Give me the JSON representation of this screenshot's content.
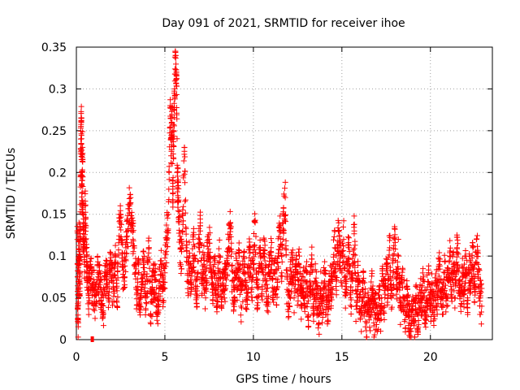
{
  "chart_data": {
    "type": "scatter",
    "title": "Day 091 of 2021, SRMTID for receiver ihoe",
    "xlabel": "GPS time / hours",
    "ylabel": "SRMTID / TECUs",
    "xlim": [
      0,
      23.5
    ],
    "ylim": [
      0,
      0.35
    ],
    "xticks": [
      0,
      5,
      10,
      15,
      20
    ],
    "xtick_labels": [
      "0",
      "5",
      "10",
      "15",
      "20"
    ],
    "yticks": [
      0,
      0.05,
      0.1,
      0.15,
      0.2,
      0.25,
      0.3,
      0.35
    ],
    "ytick_labels": [
      "0",
      "0.05",
      "0.1",
      "0.15",
      "0.2",
      "0.25",
      "0.3",
      "0.35"
    ],
    "grid": true,
    "marker": "plus",
    "color": "#ff0000",
    "x_range_of_data": [
      0.0,
      22.9
    ],
    "series": [
      {
        "name": "SRMTID",
        "points": [
          [
            0.05,
            0.13
          ],
          [
            0.08,
            0.04
          ],
          [
            0.1,
            0.02
          ],
          [
            0.12,
            0.09
          ],
          [
            0.15,
            0.14
          ],
          [
            0.18,
            0.07
          ],
          [
            0.2,
            0.08
          ],
          [
            0.22,
            0.12
          ],
          [
            0.25,
            0.24
          ],
          [
            0.28,
            0.26
          ],
          [
            0.3,
            0.2
          ],
          [
            0.32,
            0.16
          ],
          [
            0.35,
            0.23
          ],
          [
            0.38,
            0.11
          ],
          [
            0.4,
            0.15
          ],
          [
            0.45,
            0.09
          ],
          [
            0.5,
            0.16
          ],
          [
            0.55,
            0.11
          ],
          [
            0.6,
            0.08
          ],
          [
            0.65,
            0.07
          ],
          [
            0.7,
            0.05
          ],
          [
            0.8,
            0.09
          ],
          [
            0.9,
            0.06
          ],
          [
            1.0,
            0.06
          ],
          [
            1.1,
            0.04
          ],
          [
            1.2,
            0.08
          ],
          [
            1.3,
            0.07
          ],
          [
            1.4,
            0.05
          ],
          [
            1.5,
            0.03
          ],
          [
            1.6,
            0.06
          ],
          [
            1.7,
            0.08
          ],
          [
            1.8,
            0.05
          ],
          [
            1.9,
            0.09
          ],
          [
            2.0,
            0.07
          ],
          [
            2.1,
            0.06
          ],
          [
            2.2,
            0.1
          ],
          [
            2.3,
            0.04
          ],
          [
            2.4,
            0.12
          ],
          [
            2.5,
            0.15
          ],
          [
            2.6,
            0.09
          ],
          [
            2.7,
            0.07
          ],
          [
            2.8,
            0.11
          ],
          [
            2.9,
            0.13
          ],
          [
            3.0,
            0.16
          ],
          [
            3.1,
            0.14
          ],
          [
            3.2,
            0.12
          ],
          [
            3.3,
            0.09
          ],
          [
            3.4,
            0.06
          ],
          [
            3.5,
            0.08
          ],
          [
            3.6,
            0.04
          ],
          [
            3.7,
            0.06
          ],
          [
            3.8,
            0.09
          ],
          [
            3.9,
            0.05
          ],
          [
            4.0,
            0.07
          ],
          [
            4.1,
            0.11
          ],
          [
            4.2,
            0.03
          ],
          [
            4.3,
            0.06
          ],
          [
            4.4,
            0.08
          ],
          [
            4.5,
            0.05
          ],
          [
            4.6,
            0.04
          ],
          [
            4.7,
            0.07
          ],
          [
            4.8,
            0.09
          ],
          [
            4.9,
            0.06
          ],
          [
            5.0,
            0.08
          ],
          [
            5.1,
            0.12
          ],
          [
            5.2,
            0.15
          ],
          [
            5.3,
            0.28
          ],
          [
            5.35,
            0.22
          ],
          [
            5.4,
            0.26
          ],
          [
            5.45,
            0.18
          ],
          [
            5.5,
            0.25
          ],
          [
            5.55,
            0.3
          ],
          [
            5.6,
            0.34
          ],
          [
            5.65,
            0.32
          ],
          [
            5.7,
            0.2
          ],
          [
            5.75,
            0.17
          ],
          [
            5.8,
            0.14
          ],
          [
            5.9,
            0.09
          ],
          [
            6.0,
            0.13
          ],
          [
            6.1,
            0.23
          ],
          [
            6.2,
            0.11
          ],
          [
            6.3,
            0.07
          ],
          [
            6.4,
            0.1
          ],
          [
            6.5,
            0.06
          ],
          [
            6.6,
            0.12
          ],
          [
            6.7,
            0.08
          ],
          [
            6.8,
            0.05
          ],
          [
            6.9,
            0.11
          ],
          [
            7.0,
            0.13
          ],
          [
            7.1,
            0.07
          ],
          [
            7.2,
            0.09
          ],
          [
            7.3,
            0.05
          ],
          [
            7.4,
            0.1
          ],
          [
            7.5,
            0.12
          ],
          [
            7.6,
            0.08
          ],
          [
            7.7,
            0.06
          ],
          [
            7.8,
            0.09
          ],
          [
            7.9,
            0.05
          ],
          [
            8.0,
            0.07
          ],
          [
            8.1,
            0.1
          ],
          [
            8.2,
            0.04
          ],
          [
            8.3,
            0.08
          ],
          [
            8.4,
            0.06
          ],
          [
            8.5,
            0.09
          ],
          [
            8.6,
            0.11
          ],
          [
            8.7,
            0.14
          ],
          [
            8.8,
            0.07
          ],
          [
            8.9,
            0.05
          ],
          [
            9.0,
            0.08
          ],
          [
            9.1,
            0.06
          ],
          [
            9.2,
            0.1
          ],
          [
            9.3,
            0.04
          ],
          [
            9.4,
            0.07
          ],
          [
            9.5,
            0.09
          ],
          [
            9.6,
            0.05
          ],
          [
            9.7,
            0.08
          ],
          [
            9.8,
            0.11
          ],
          [
            9.9,
            0.06
          ],
          [
            10.0,
            0.09
          ],
          [
            10.1,
            0.14
          ],
          [
            10.2,
            0.05
          ],
          [
            10.3,
            0.08
          ],
          [
            10.4,
            0.1
          ],
          [
            10.5,
            0.06
          ],
          [
            10.6,
            0.12
          ],
          [
            10.7,
            0.07
          ],
          [
            10.8,
            0.04
          ],
          [
            10.9,
            0.09
          ],
          [
            11.0,
            0.11
          ],
          [
            11.1,
            0.05
          ],
          [
            11.2,
            0.08
          ],
          [
            11.3,
            0.06
          ],
          [
            11.4,
            0.1
          ],
          [
            11.5,
            0.13
          ],
          [
            11.6,
            0.08
          ],
          [
            11.7,
            0.15
          ],
          [
            11.8,
            0.17
          ],
          [
            11.9,
            0.06
          ],
          [
            12.0,
            0.04
          ],
          [
            12.1,
            0.07
          ],
          [
            12.2,
            0.09
          ],
          [
            12.3,
            0.05
          ],
          [
            12.4,
            0.08
          ],
          [
            12.5,
            0.06
          ],
          [
            12.6,
            0.1
          ],
          [
            12.7,
            0.04
          ],
          [
            12.8,
            0.07
          ],
          [
            12.9,
            0.05
          ],
          [
            13.0,
            0.08
          ],
          [
            13.1,
            0.03
          ],
          [
            13.2,
            0.06
          ],
          [
            13.3,
            0.09
          ],
          [
            13.4,
            0.04
          ],
          [
            13.5,
            0.07
          ],
          [
            13.6,
            0.05
          ],
          [
            13.7,
            0.02
          ],
          [
            13.8,
            0.06
          ],
          [
            13.9,
            0.04
          ],
          [
            14.0,
            0.08
          ],
          [
            14.1,
            0.05
          ],
          [
            14.2,
            0.03
          ],
          [
            14.3,
            0.07
          ],
          [
            14.4,
            0.06
          ],
          [
            14.5,
            0.09
          ],
          [
            14.6,
            0.11
          ],
          [
            14.7,
            0.07
          ],
          [
            14.8,
            0.13
          ],
          [
            14.9,
            0.1
          ],
          [
            15.0,
            0.08
          ],
          [
            15.1,
            0.12
          ],
          [
            15.2,
            0.06
          ],
          [
            15.3,
            0.09
          ],
          [
            15.4,
            0.11
          ],
          [
            15.5,
            0.05
          ],
          [
            15.6,
            0.08
          ],
          [
            15.7,
            0.13
          ],
          [
            15.8,
            0.04
          ],
          [
            15.9,
            0.07
          ],
          [
            16.0,
            0.05
          ],
          [
            16.1,
            0.03
          ],
          [
            16.2,
            0.06
          ],
          [
            16.3,
            0.04
          ],
          [
            16.4,
            0.02
          ],
          [
            16.5,
            0.05
          ],
          [
            16.6,
            0.03
          ],
          [
            16.7,
            0.06
          ],
          [
            16.8,
            0.02
          ],
          [
            16.9,
            0.04
          ],
          [
            17.0,
            0.01
          ],
          [
            17.1,
            0.05
          ],
          [
            17.2,
            0.03
          ],
          [
            17.3,
            0.07
          ],
          [
            17.4,
            0.04
          ],
          [
            17.5,
            0.09
          ],
          [
            17.6,
            0.06
          ],
          [
            17.7,
            0.11
          ],
          [
            17.8,
            0.05
          ],
          [
            17.9,
            0.08
          ],
          [
            18.0,
            0.12
          ],
          [
            18.1,
            0.06
          ],
          [
            18.2,
            0.1
          ],
          [
            18.3,
            0.04
          ],
          [
            18.4,
            0.07
          ],
          [
            18.5,
            0.05
          ],
          [
            18.6,
            0.03
          ],
          [
            18.7,
            0.06
          ],
          [
            18.8,
            0.02
          ],
          [
            18.9,
            0.01
          ],
          [
            19.0,
            0.04
          ],
          [
            19.1,
            0.02
          ],
          [
            19.2,
            0.05
          ],
          [
            19.3,
            0.03
          ],
          [
            19.4,
            0.06
          ],
          [
            19.5,
            0.04
          ],
          [
            19.6,
            0.07
          ],
          [
            19.7,
            0.03
          ],
          [
            19.8,
            0.05
          ],
          [
            19.9,
            0.08
          ],
          [
            20.0,
            0.04
          ],
          [
            20.1,
            0.06
          ],
          [
            20.2,
            0.03
          ],
          [
            20.3,
            0.07
          ],
          [
            20.4,
            0.05
          ],
          [
            20.5,
            0.09
          ],
          [
            20.6,
            0.06
          ],
          [
            20.7,
            0.04
          ],
          [
            20.8,
            0.08
          ],
          [
            20.9,
            0.05
          ],
          [
            21.0,
            0.07
          ],
          [
            21.1,
            0.1
          ],
          [
            21.2,
            0.06
          ],
          [
            21.3,
            0.09
          ],
          [
            21.4,
            0.05
          ],
          [
            21.5,
            0.11
          ],
          [
            21.6,
            0.07
          ],
          [
            21.7,
            0.04
          ],
          [
            21.8,
            0.08
          ],
          [
            21.9,
            0.06
          ],
          [
            22.0,
            0.1
          ],
          [
            22.1,
            0.05
          ],
          [
            22.2,
            0.08
          ],
          [
            22.3,
            0.07
          ],
          [
            22.4,
            0.11
          ],
          [
            22.5,
            0.06
          ],
          [
            22.6,
            0.12
          ],
          [
            22.7,
            0.09
          ],
          [
            22.8,
            0.05
          ],
          [
            22.9,
            0.04
          ]
        ]
      }
    ],
    "isolated_marker": {
      "x": 0.9,
      "y": 0.0
    }
  }
}
